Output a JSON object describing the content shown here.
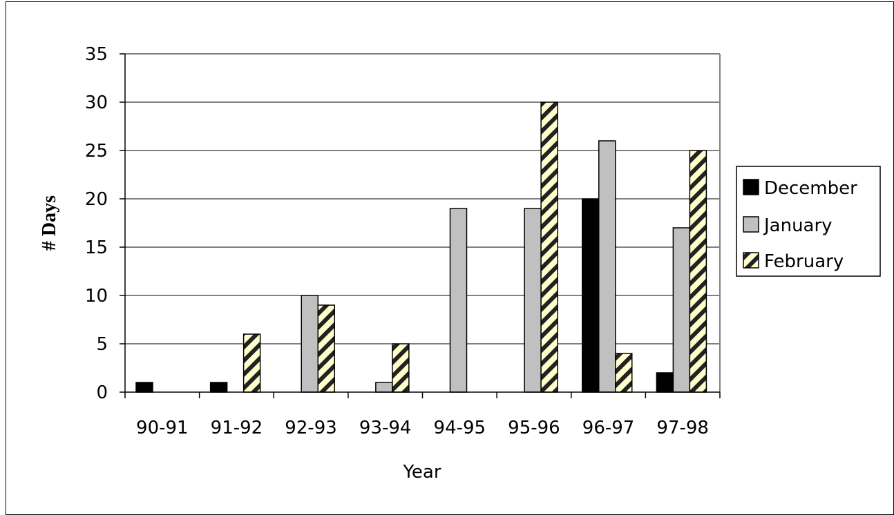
{
  "chart_data": {
    "type": "bar",
    "title": "",
    "xlabel": "Year",
    "ylabel": "# Days",
    "ylim": [
      0,
      35
    ],
    "yticks": [
      0,
      5,
      10,
      15,
      20,
      25,
      30,
      35
    ],
    "grid": true,
    "legend_position": "right",
    "categories": [
      "90-91",
      "91-92",
      "92-93",
      "93-94",
      "94-95",
      "95-96",
      "96-97",
      "97-98"
    ],
    "series": [
      {
        "name": "December",
        "values": [
          1,
          1,
          0,
          0,
          0,
          0,
          20,
          2
        ],
        "color": "#000000",
        "pattern": "solid"
      },
      {
        "name": "January",
        "values": [
          0,
          0,
          10,
          1,
          19,
          19,
          26,
          17
        ],
        "color": "#c0c0c0",
        "pattern": "solid"
      },
      {
        "name": "February",
        "values": [
          0,
          6,
          9,
          5,
          0,
          30,
          4,
          25
        ],
        "color": "#ffffcc",
        "pattern": "diagonal-stripes"
      }
    ]
  }
}
